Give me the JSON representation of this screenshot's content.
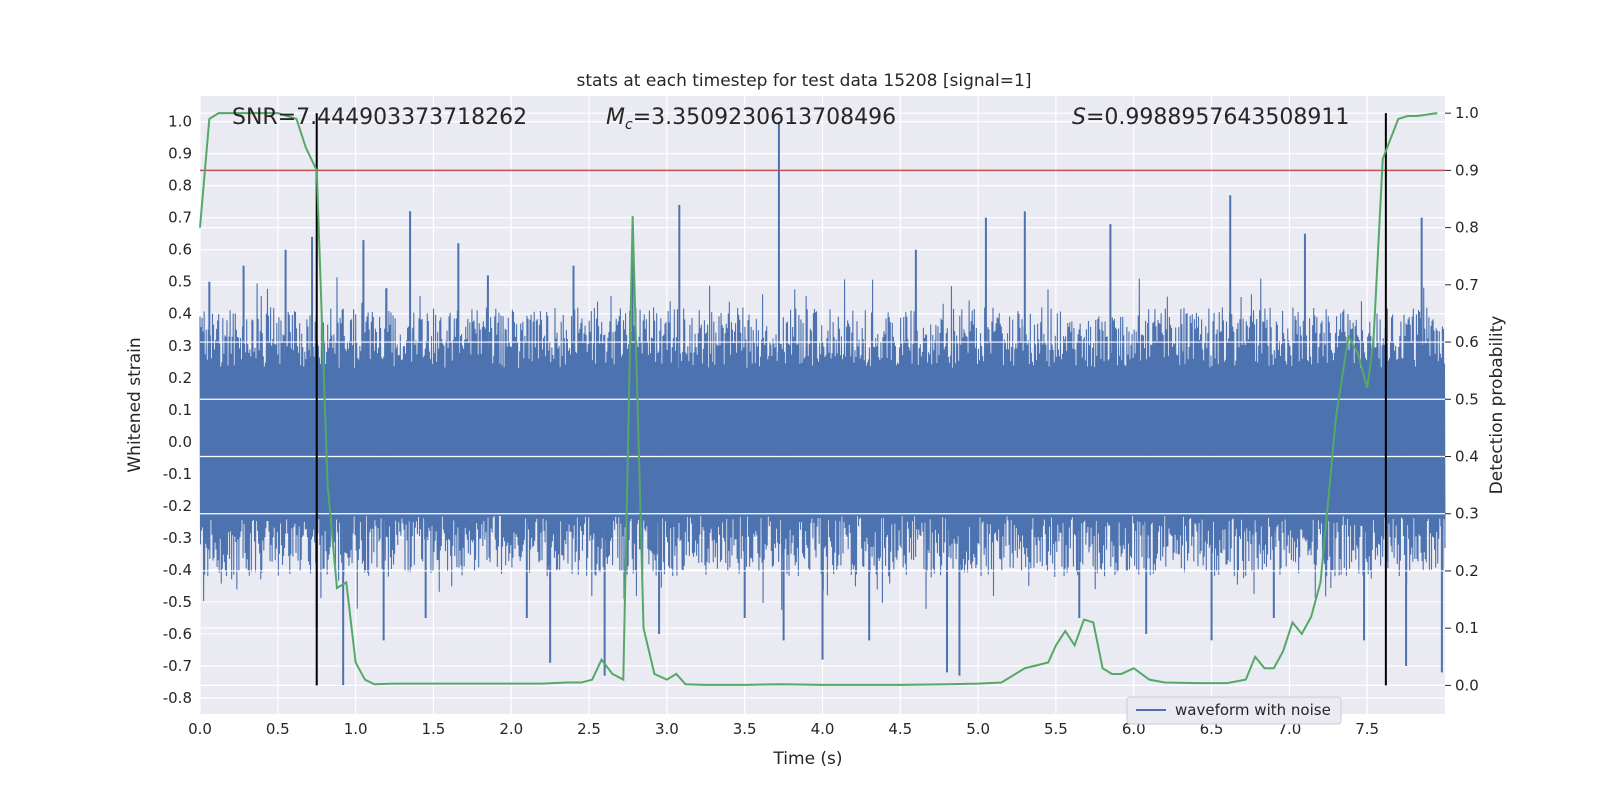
{
  "chart_data": {
    "type": "line",
    "title": "stats at each timestep for test data 15208 [signal=1]",
    "xlabel": "Time (s)",
    "ylabel": "Whitened strain",
    "ylabel_right": "Detection probability",
    "xlim": [
      0.0,
      8.0
    ],
    "ylim": [
      -0.85,
      1.08
    ],
    "ylim_right": [
      -0.05,
      1.03
    ],
    "x_ticks": [
      "0.0",
      "0.5",
      "1.0",
      "1.5",
      "2.0",
      "2.5",
      "3.0",
      "3.5",
      "4.0",
      "4.5",
      "5.0",
      "5.5",
      "6.0",
      "6.5",
      "7.0",
      "7.5"
    ],
    "y_ticks": [
      "-0.8",
      "-0.7",
      "-0.6",
      "-0.5",
      "-0.4",
      "-0.3",
      "-0.2",
      "-0.1",
      "0.0",
      "0.1",
      "0.2",
      "0.3",
      "0.4",
      "0.5",
      "0.6",
      "0.7",
      "0.8",
      "0.9",
      "1.0"
    ],
    "y_ticks_right": [
      "0.0",
      "0.1",
      "0.2",
      "0.3",
      "0.4",
      "0.5",
      "0.6",
      "0.7",
      "0.8",
      "0.9",
      "1.0"
    ],
    "grid": true,
    "legend_position": "lower-right",
    "annotations": {
      "snr": "SNR=7.444903373718262",
      "mc_symbol": "M",
      "mc_sub": "c",
      "mc_value": "=3.3509230613708496",
      "s_symbol": "S",
      "s_value": "=0.9988957643508911"
    },
    "series": [
      {
        "name": "waveform with noise",
        "axis": "left",
        "color": "#4c72b0",
        "note_levels": "dense noise band roughly within [-0.45, 0.45] with spikes",
        "envelope_pos": 0.42,
        "envelope_neg": -0.42,
        "spikes": [
          [
            0.06,
            0.5
          ],
          [
            0.28,
            0.55
          ],
          [
            0.55,
            0.6
          ],
          [
            0.72,
            0.64
          ],
          [
            0.75,
            -0.58
          ],
          [
            0.92,
            -0.76
          ],
          [
            1.05,
            0.63
          ],
          [
            1.18,
            -0.62
          ],
          [
            1.35,
            0.72
          ],
          [
            1.45,
            -0.55
          ],
          [
            1.66,
            0.62
          ],
          [
            1.85,
            0.52
          ],
          [
            2.1,
            -0.55
          ],
          [
            2.25,
            -0.69
          ],
          [
            2.4,
            0.55
          ],
          [
            2.6,
            -0.73
          ],
          [
            2.78,
            0.68
          ],
          [
            2.95,
            -0.6
          ],
          [
            3.08,
            0.74
          ],
          [
            3.5,
            -0.55
          ],
          [
            3.72,
            1.0
          ],
          [
            3.75,
            -0.62
          ],
          [
            4.0,
            -0.68
          ],
          [
            4.3,
            -0.62
          ],
          [
            4.6,
            0.6
          ],
          [
            4.8,
            -0.72
          ],
          [
            4.88,
            -0.73
          ],
          [
            5.05,
            0.7
          ],
          [
            5.3,
            0.72
          ],
          [
            5.65,
            -0.55
          ],
          [
            5.85,
            0.68
          ],
          [
            6.08,
            -0.6
          ],
          [
            6.5,
            -0.62
          ],
          [
            6.62,
            0.77
          ],
          [
            6.9,
            -0.55
          ],
          [
            7.1,
            0.65
          ],
          [
            7.48,
            -0.62
          ],
          [
            7.75,
            -0.7
          ],
          [
            7.85,
            0.7
          ],
          [
            7.98,
            -0.72
          ]
        ]
      },
      {
        "name": "",
        "axis": "right",
        "color": "#55a868",
        "x": [
          0.0,
          0.06,
          0.12,
          0.25,
          0.5,
          0.62,
          0.68,
          0.75,
          0.82,
          0.88,
          0.94,
          1.0,
          1.06,
          1.12,
          1.25,
          1.5,
          1.75,
          2.0,
          2.2,
          2.35,
          2.45,
          2.52,
          2.58,
          2.65,
          2.72,
          2.78,
          2.85,
          2.92,
          3.0,
          3.06,
          3.12,
          3.25,
          3.5,
          3.75,
          4.0,
          4.5,
          4.8,
          5.0,
          5.15,
          5.3,
          5.45,
          5.5,
          5.56,
          5.62,
          5.68,
          5.74,
          5.8,
          5.86,
          5.92,
          6.0,
          6.1,
          6.2,
          6.4,
          6.6,
          6.72,
          6.78,
          6.84,
          6.9,
          6.96,
          7.02,
          7.08,
          7.14,
          7.2,
          7.3,
          7.38,
          7.44,
          7.5,
          7.54,
          7.6,
          7.7,
          7.76,
          7.82,
          7.95
        ],
        "values": [
          0.8,
          0.99,
          1.0,
          1.0,
          1.0,
          0.99,
          0.94,
          0.9,
          0.35,
          0.17,
          0.18,
          0.04,
          0.01,
          0.002,
          0.003,
          0.003,
          0.003,
          0.003,
          0.003,
          0.005,
          0.005,
          0.01,
          0.045,
          0.02,
          0.01,
          0.82,
          0.1,
          0.02,
          0.01,
          0.02,
          0.002,
          0.001,
          0.001,
          0.002,
          0.001,
          0.001,
          0.002,
          0.003,
          0.005,
          0.03,
          0.04,
          0.07,
          0.095,
          0.07,
          0.115,
          0.11,
          0.03,
          0.02,
          0.02,
          0.03,
          0.01,
          0.005,
          0.004,
          0.004,
          0.01,
          0.05,
          0.03,
          0.03,
          0.06,
          0.11,
          0.09,
          0.12,
          0.18,
          0.47,
          0.61,
          0.58,
          0.52,
          0.6,
          0.92,
          0.99,
          0.995,
          0.995,
          1.0
        ]
      }
    ],
    "threshold": {
      "axis": "right",
      "value": 0.9,
      "color": "#c44e52"
    },
    "vlines": [
      0.75,
      7.62
    ]
  }
}
